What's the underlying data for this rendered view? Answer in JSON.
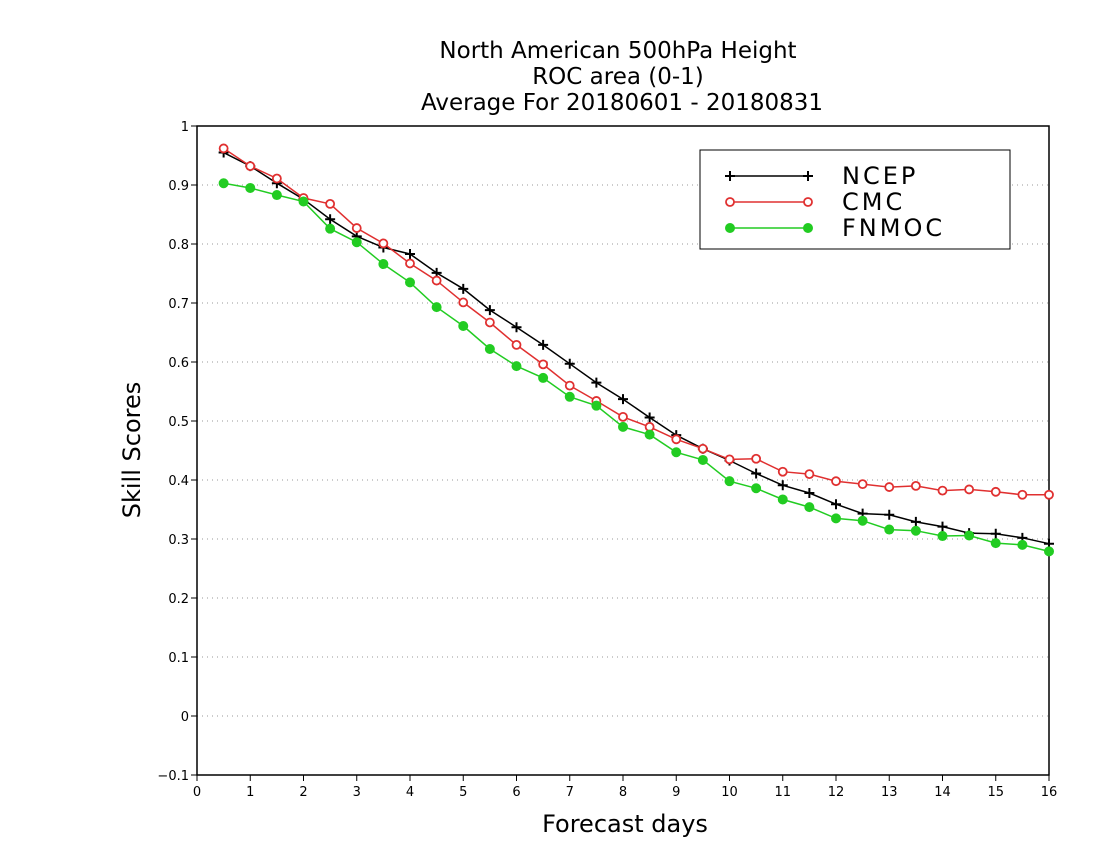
{
  "chart_data": {
    "type": "line",
    "title_lines": [
      "North American 500hPa Height",
      "ROC area (0-1)",
      "Average For 20180601 - 20180831"
    ],
    "xlabel": "Forecast days",
    "ylabel": "Skill Scores",
    "xlim": [
      0,
      16
    ],
    "ylim": [
      -0.1,
      1
    ],
    "x_ticks": [
      "0",
      "1",
      "2",
      "3",
      "4",
      "5",
      "6",
      "7",
      "8",
      "9",
      "10",
      "11",
      "12",
      "13",
      "14",
      "15",
      "16"
    ],
    "y_ticks": [
      "−0.1",
      "0",
      "0.1",
      "0.2",
      "0.3",
      "0.4",
      "0.5",
      "0.6",
      "0.7",
      "0.8",
      "0.9",
      "1"
    ],
    "grid": "horizontal dotted",
    "legend_position": "top-right",
    "x": [
      0.5,
      1,
      1.5,
      2,
      2.5,
      3,
      3.5,
      4,
      4.5,
      5,
      5.5,
      6,
      6.5,
      7,
      7.5,
      8,
      8.5,
      9,
      9.5,
      10,
      10.5,
      11,
      11.5,
      12,
      12.5,
      13,
      13.5,
      14,
      14.5,
      15,
      15.5,
      16
    ],
    "series": [
      {
        "name": "NCEP",
        "color": "#000000",
        "marker": "plus",
        "values": [
          0.955,
          0.932,
          0.903,
          0.876,
          0.842,
          0.813,
          0.794,
          0.783,
          0.751,
          0.724,
          0.688,
          0.659,
          0.629,
          0.597,
          0.565,
          0.537,
          0.506,
          0.476,
          0.453,
          0.433,
          0.411,
          0.391,
          0.378,
          0.359,
          0.343,
          0.341,
          0.329,
          0.321,
          0.31,
          0.309,
          0.302,
          0.292
        ]
      },
      {
        "name": "CMC",
        "color": "#e03030",
        "marker": "open-circle",
        "values": [
          0.962,
          0.932,
          0.911,
          0.878,
          0.868,
          0.827,
          0.801,
          0.767,
          0.738,
          0.701,
          0.667,
          0.629,
          0.596,
          0.56,
          0.534,
          0.507,
          0.49,
          0.469,
          0.453,
          0.435,
          0.436,
          0.414,
          0.41,
          0.398,
          0.393,
          0.388,
          0.39,
          0.382,
          0.384,
          0.38,
          0.375,
          0.375
        ]
      },
      {
        "name": "FNMOC",
        "color": "#22cc22",
        "marker": "filled-circle",
        "values": [
          0.903,
          0.895,
          0.883,
          0.872,
          0.826,
          0.803,
          0.766,
          0.735,
          0.693,
          0.661,
          0.622,
          0.593,
          0.573,
          0.541,
          0.526,
          0.49,
          0.477,
          0.447,
          0.434,
          0.398,
          0.386,
          0.367,
          0.354,
          0.335,
          0.331,
          0.316,
          0.314,
          0.305,
          0.306,
          0.293,
          0.29,
          0.279
        ]
      }
    ]
  }
}
